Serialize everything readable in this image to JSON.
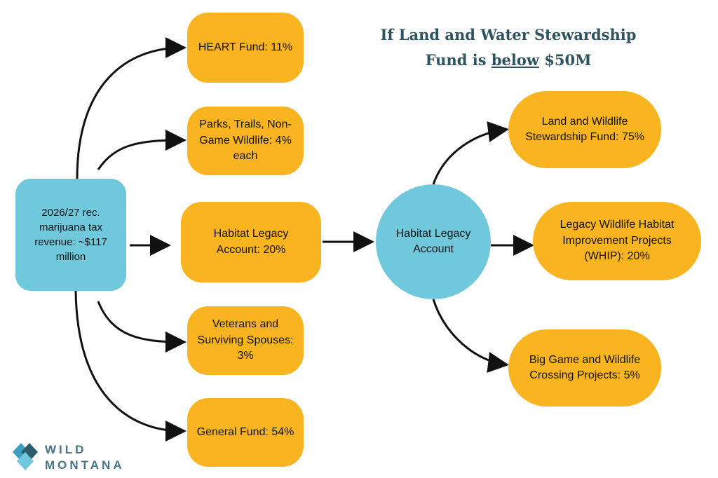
{
  "title": {
    "parts": [
      "If Land and Water Stewardship Fund is ",
      "below",
      " $50M"
    ]
  },
  "source": {
    "label": "2026/27 rec. marijuana tax revenue: ~$117 million"
  },
  "allocations": [
    {
      "label": "HEART Fund: 11%"
    },
    {
      "label": "Parks, Trails, Non-Game Wildlife: 4% each"
    },
    {
      "label": "Habitat Legacy Account: 20%"
    },
    {
      "label": "Veterans and Surviving Spouses: 3%"
    },
    {
      "label": "General Fund: 54%"
    }
  ],
  "hub": {
    "label": "Habitat Legacy Account"
  },
  "sub_allocations": [
    {
      "label": "Land and Wildlife Stewardship Fund: 75%"
    },
    {
      "label": "Legacy Wildlife Habitat Improvement Projects (WHIP): 20%"
    },
    {
      "label": "Big Game and Wildlife Crossing Projects: 5%"
    }
  ],
  "logo": {
    "line1": "WILD",
    "line2": "MONTANA"
  }
}
